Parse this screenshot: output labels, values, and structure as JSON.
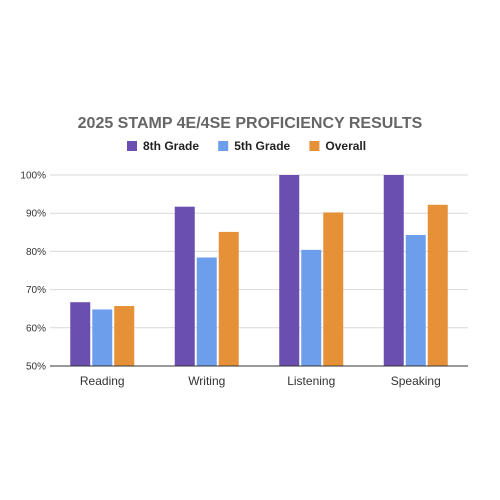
{
  "chart_data": {
    "type": "bar",
    "title": "2025 STAMP 4E/4SE PROFICIENCY RESULTS",
    "categories": [
      "Reading",
      "Writing",
      "Listening",
      "Speaking"
    ],
    "series": [
      {
        "name": "8th Grade",
        "color": "#6a4fb0",
        "values": [
          66.7,
          91.7,
          100,
          100
        ]
      },
      {
        "name": "5th Grade",
        "color": "#6d9eeb",
        "values": [
          64.8,
          78.4,
          80.4,
          84.3
        ]
      },
      {
        "name": "Overall",
        "color": "#e69138",
        "values": [
          65.7,
          85.1,
          90.2,
          92.2
        ]
      }
    ],
    "ylim": [
      50,
      100
    ],
    "yticks": [
      50,
      60,
      70,
      80,
      90,
      100
    ],
    "ytick_labels": [
      "50%",
      "60%",
      "70%",
      "80%",
      "90%",
      "100%"
    ],
    "legend_position": "top",
    "grid": true,
    "xlabel": "",
    "ylabel": ""
  }
}
